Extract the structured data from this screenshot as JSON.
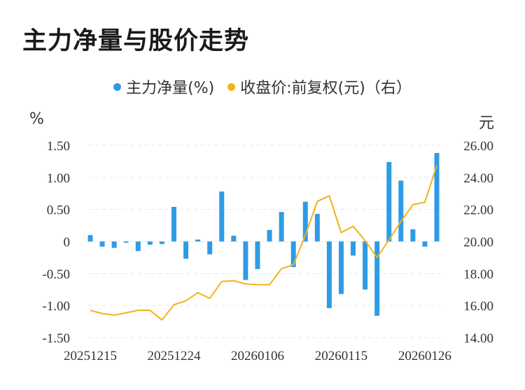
{
  "title": "主力净量与股价走势",
  "colors": {
    "bar": "#2f9be6",
    "line": "#f3b21b",
    "grid": "#e6e6e6",
    "text": "#333333"
  },
  "chart_data": {
    "type": "bar+line",
    "title": "主力净量与股价走势",
    "legend": [
      {
        "name": "主力净量(%)",
        "color": "#2f9be6",
        "icon": "blue-dot-icon"
      },
      {
        "name": "收盘价:前复权(元)（右）",
        "color": "#f3b21b",
        "icon": "yellow-dot-icon"
      }
    ],
    "legend_position": "top-center",
    "y_left_unit": "%",
    "y_right_unit": "元",
    "y_left_ticks": [
      "1.50",
      "1.00",
      "0.50",
      "0",
      "-0.50",
      "-1.00",
      "-1.50"
    ],
    "y_left_values": [
      1.5,
      1.0,
      0.5,
      0,
      -0.5,
      -1.0,
      -1.5
    ],
    "y_right_ticks": [
      "26.00",
      "24.00",
      "22.00",
      "20.00",
      "18.00",
      "16.00",
      "14.00"
    ],
    "y_right_values": [
      26,
      24,
      22,
      20,
      18,
      16,
      14
    ],
    "ylim_left": [
      -1.5,
      1.5
    ],
    "ylim_right": [
      14,
      26
    ],
    "x_tick_labels": [
      {
        "label": "20251215",
        "index": 0
      },
      {
        "label": "20251224",
        "index": 7
      },
      {
        "label": "20260106",
        "index": 14
      },
      {
        "label": "20260115",
        "index": 21
      },
      {
        "label": "20260126",
        "index": 28
      }
    ],
    "grid": "horizontal-dashed",
    "series": [
      {
        "name": "主力净量(%)",
        "kind": "bar",
        "axis": "left",
        "values": [
          0.1,
          -0.08,
          -0.1,
          -0.02,
          -0.15,
          -0.05,
          -0.04,
          0.54,
          -0.27,
          0.03,
          -0.2,
          0.78,
          0.09,
          -0.6,
          -0.43,
          0.18,
          0.46,
          -0.4,
          0.62,
          0.43,
          -1.04,
          -0.82,
          -0.22,
          -0.75,
          -1.16,
          1.24,
          0.95,
          0.19,
          -0.08,
          1.38
        ]
      },
      {
        "name": "收盘价:前复权(元)（右）",
        "kind": "line",
        "axis": "right",
        "values": [
          15.7,
          15.5,
          15.4,
          15.55,
          15.7,
          15.7,
          15.1,
          16.05,
          16.3,
          16.8,
          16.45,
          17.5,
          17.55,
          17.35,
          17.3,
          17.3,
          18.3,
          18.55,
          20.4,
          22.5,
          22.85,
          20.55,
          20.95,
          20.05,
          19.0,
          20.1,
          21.25,
          22.3,
          22.45,
          24.75
        ]
      }
    ]
  }
}
